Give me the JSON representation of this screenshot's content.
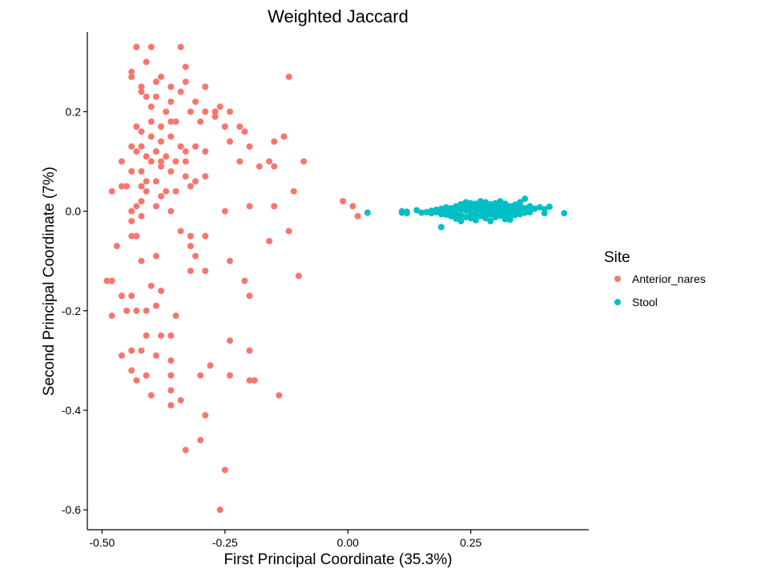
{
  "chart_data": {
    "type": "scatter",
    "title": "Weighted Jaccard",
    "xlabel": "First Principal Coordinate (35.3%)",
    "ylabel": "Second Principal Coordinate (7%)",
    "xlim": [
      -0.53,
      0.49
    ],
    "ylim": [
      -0.64,
      0.36
    ],
    "xticks": [
      -0.5,
      -0.25,
      0.0,
      0.25
    ],
    "xtick_labels": [
      "-0.50",
      "-0.25",
      "0.00",
      "0.25"
    ],
    "yticks": [
      -0.6,
      -0.4,
      -0.2,
      0.0,
      0.2
    ],
    "ytick_labels": [
      "-0.6",
      "-0.4",
      "-0.2",
      "0.0",
      "0.2"
    ],
    "grid": false,
    "legend": {
      "title": "Site",
      "placement": "right"
    },
    "series": [
      {
        "name": "Anterior_nares",
        "color": "#F8766D",
        "points": [
          [
            -0.43,
            0.33
          ],
          [
            -0.4,
            0.33
          ],
          [
            -0.34,
            0.33
          ],
          [
            -0.44,
            0.28
          ],
          [
            -0.44,
            0.27
          ],
          [
            -0.41,
            0.3
          ],
          [
            -0.38,
            0.27
          ],
          [
            -0.39,
            0.26
          ],
          [
            -0.36,
            0.25
          ],
          [
            -0.33,
            0.29
          ],
          [
            -0.33,
            0.26
          ],
          [
            -0.29,
            0.25
          ],
          [
            -0.12,
            0.27
          ],
          [
            -0.42,
            0.25
          ],
          [
            -0.42,
            0.24
          ],
          [
            -0.41,
            0.23
          ],
          [
            -0.39,
            0.23
          ],
          [
            -0.34,
            0.24
          ],
          [
            -0.36,
            0.22
          ],
          [
            -0.4,
            0.21
          ],
          [
            -0.37,
            0.2
          ],
          [
            -0.31,
            0.22
          ],
          [
            -0.26,
            0.21
          ],
          [
            -0.27,
            0.2
          ],
          [
            -0.29,
            0.2
          ],
          [
            -0.27,
            0.19
          ],
          [
            -0.24,
            0.2
          ],
          [
            -0.32,
            0.2
          ],
          [
            -0.43,
            0.17
          ],
          [
            -0.42,
            0.16
          ],
          [
            -0.4,
            0.18
          ],
          [
            -0.38,
            0.17
          ],
          [
            -0.36,
            0.18
          ],
          [
            -0.35,
            0.18
          ],
          [
            -0.3,
            0.18
          ],
          [
            -0.25,
            0.17
          ],
          [
            -0.22,
            0.17
          ],
          [
            -0.21,
            0.16
          ],
          [
            -0.15,
            0.14
          ],
          [
            -0.13,
            0.15
          ],
          [
            -0.24,
            0.14
          ],
          [
            -0.2,
            0.13
          ],
          [
            -0.44,
            0.13
          ],
          [
            -0.42,
            0.13
          ],
          [
            -0.4,
            0.15
          ],
          [
            -0.38,
            0.14
          ],
          [
            -0.36,
            0.15
          ],
          [
            -0.34,
            0.13
          ],
          [
            -0.33,
            0.12
          ],
          [
            -0.31,
            0.13
          ],
          [
            -0.29,
            0.12
          ],
          [
            -0.39,
            0.12
          ],
          [
            -0.43,
            0.12
          ],
          [
            -0.41,
            0.11
          ],
          [
            -0.4,
            0.1
          ],
          [
            -0.38,
            0.1
          ],
          [
            -0.37,
            0.11
          ],
          [
            -0.35,
            0.1
          ],
          [
            -0.33,
            0.1
          ],
          [
            -0.22,
            0.1
          ],
          [
            -0.18,
            0.09
          ],
          [
            -0.16,
            0.1
          ],
          [
            -0.15,
            0.09
          ],
          [
            -0.09,
            0.1
          ],
          [
            -0.46,
            0.1
          ],
          [
            -0.44,
            0.08
          ],
          [
            -0.42,
            0.08
          ],
          [
            -0.38,
            0.09
          ],
          [
            -0.36,
            0.08
          ],
          [
            -0.33,
            0.07
          ],
          [
            -0.31,
            0.06
          ],
          [
            -0.29,
            0.07
          ],
          [
            -0.41,
            0.06
          ],
          [
            -0.39,
            0.06
          ],
          [
            -0.45,
            0.05
          ],
          [
            -0.46,
            0.05
          ],
          [
            -0.48,
            0.04
          ],
          [
            -0.42,
            0.05
          ],
          [
            -0.41,
            0.04
          ],
          [
            -0.38,
            0.03
          ],
          [
            -0.37,
            0.04
          ],
          [
            -0.35,
            0.04
          ],
          [
            -0.32,
            0.05
          ],
          [
            -0.11,
            0.04
          ],
          [
            -0.44,
            0.0
          ],
          [
            -0.43,
            0.01
          ],
          [
            -0.42,
            0.02
          ],
          [
            -0.39,
            0.01
          ],
          [
            -0.36,
            0.0
          ],
          [
            -0.25,
            0.0
          ],
          [
            -0.2,
            0.01
          ],
          [
            -0.15,
            0.01
          ],
          [
            -0.42,
            -0.01
          ],
          [
            -0.44,
            -0.02
          ],
          [
            -0.34,
            -0.04
          ],
          [
            -0.32,
            -0.05
          ],
          [
            -0.29,
            -0.05
          ],
          [
            -0.32,
            -0.07
          ],
          [
            -0.31,
            -0.09
          ],
          [
            -0.24,
            -0.1
          ],
          [
            -0.16,
            -0.06
          ],
          [
            -0.12,
            -0.04
          ],
          [
            -0.43,
            -0.05
          ],
          [
            -0.44,
            -0.05
          ],
          [
            -0.47,
            -0.07
          ],
          [
            -0.39,
            -0.09
          ],
          [
            -0.42,
            -0.1
          ],
          [
            -0.4,
            -0.15
          ],
          [
            -0.38,
            -0.16
          ],
          [
            -0.32,
            -0.12
          ],
          [
            -0.29,
            -0.12
          ],
          [
            -0.21,
            -0.14
          ],
          [
            -0.2,
            -0.17
          ],
          [
            -0.1,
            -0.13
          ],
          [
            -0.49,
            -0.14
          ],
          [
            -0.48,
            -0.14
          ],
          [
            -0.46,
            -0.17
          ],
          [
            -0.44,
            -0.17
          ],
          [
            -0.39,
            -0.19
          ],
          [
            -0.41,
            -0.2
          ],
          [
            -0.45,
            -0.2
          ],
          [
            -0.43,
            -0.2
          ],
          [
            -0.48,
            -0.21
          ],
          [
            -0.38,
            -0.25
          ],
          [
            -0.41,
            -0.25
          ],
          [
            -0.36,
            -0.25
          ],
          [
            -0.35,
            -0.21
          ],
          [
            -0.46,
            -0.29
          ],
          [
            -0.44,
            -0.28
          ],
          [
            -0.42,
            -0.28
          ],
          [
            -0.39,
            -0.29
          ],
          [
            -0.36,
            -0.3
          ],
          [
            -0.36,
            -0.33
          ],
          [
            -0.41,
            -0.33
          ],
          [
            -0.43,
            -0.34
          ],
          [
            -0.44,
            -0.32
          ],
          [
            -0.3,
            -0.33
          ],
          [
            -0.24,
            -0.26
          ],
          [
            -0.2,
            -0.28
          ],
          [
            -0.28,
            -0.31
          ],
          [
            -0.24,
            -0.33
          ],
          [
            -0.2,
            -0.34
          ],
          [
            -0.19,
            -0.34
          ],
          [
            -0.4,
            -0.37
          ],
          [
            -0.36,
            -0.36
          ],
          [
            -0.36,
            -0.39
          ],
          [
            -0.34,
            -0.38
          ],
          [
            -0.29,
            -0.41
          ],
          [
            -0.14,
            -0.37
          ],
          [
            -0.3,
            -0.46
          ],
          [
            -0.33,
            -0.48
          ],
          [
            -0.25,
            -0.52
          ],
          [
            -0.26,
            -0.6
          ],
          [
            -0.01,
            0.02
          ],
          [
            0.01,
            0.01
          ],
          [
            0.02,
            -0.01
          ]
        ]
      },
      {
        "name": "Stool",
        "color": "#00BFC4",
        "points": [
          [
            0.04,
            -0.003
          ],
          [
            0.11,
            0.0
          ],
          [
            0.11,
            -0.003
          ],
          [
            0.12,
            -0.004
          ],
          [
            0.12,
            -0.001
          ],
          [
            0.14,
            0.002
          ],
          [
            0.15,
            -0.003
          ],
          [
            0.16,
            -0.002
          ],
          [
            0.17,
            0.001
          ],
          [
            0.17,
            -0.004
          ],
          [
            0.18,
            0.003
          ],
          [
            0.18,
            -0.002
          ],
          [
            0.19,
            0.005
          ],
          [
            0.19,
            -0.006
          ],
          [
            0.2,
            0.008
          ],
          [
            0.2,
            -0.001
          ],
          [
            0.2,
            -0.007
          ],
          [
            0.21,
            0.006
          ],
          [
            0.21,
            0.0
          ],
          [
            0.21,
            -0.01
          ],
          [
            0.22,
            0.01
          ],
          [
            0.22,
            0.002
          ],
          [
            0.22,
            -0.005
          ],
          [
            0.23,
            0.014
          ],
          [
            0.23,
            0.004
          ],
          [
            0.23,
            -0.008
          ],
          [
            0.24,
            0.012
          ],
          [
            0.24,
            0.001
          ],
          [
            0.24,
            -0.012
          ],
          [
            0.25,
            0.016
          ],
          [
            0.25,
            0.006
          ],
          [
            0.25,
            -0.004
          ],
          [
            0.25,
            -0.014
          ],
          [
            0.26,
            0.015
          ],
          [
            0.26,
            0.005
          ],
          [
            0.26,
            -0.006
          ],
          [
            0.27,
            0.012
          ],
          [
            0.27,
            0.002
          ],
          [
            0.27,
            -0.01
          ],
          [
            0.28,
            0.018
          ],
          [
            0.28,
            0.008
          ],
          [
            0.28,
            -0.003
          ],
          [
            0.28,
            -0.014
          ],
          [
            0.29,
            0.014
          ],
          [
            0.29,
            0.004
          ],
          [
            0.29,
            -0.007
          ],
          [
            0.3,
            0.016
          ],
          [
            0.3,
            0.006
          ],
          [
            0.3,
            -0.004
          ],
          [
            0.3,
            -0.012
          ],
          [
            0.31,
            0.012
          ],
          [
            0.31,
            0.001
          ],
          [
            0.31,
            -0.009
          ],
          [
            0.32,
            0.015
          ],
          [
            0.32,
            0.005
          ],
          [
            0.32,
            -0.006
          ],
          [
            0.33,
            0.01
          ],
          [
            0.33,
            -0.001
          ],
          [
            0.33,
            -0.011
          ],
          [
            0.34,
            0.013
          ],
          [
            0.34,
            0.003
          ],
          [
            0.34,
            -0.008
          ],
          [
            0.35,
            0.011
          ],
          [
            0.35,
            0.001
          ],
          [
            0.35,
            -0.006
          ],
          [
            0.36,
            0.025
          ],
          [
            0.36,
            0.006
          ],
          [
            0.36,
            -0.003
          ],
          [
            0.37,
            0.01
          ],
          [
            0.37,
            -0.002
          ],
          [
            0.38,
            0.005
          ],
          [
            0.39,
            0.008
          ],
          [
            0.4,
            0.004
          ],
          [
            0.4,
            -0.004
          ],
          [
            0.41,
            0.009
          ],
          [
            0.44,
            -0.004
          ],
          [
            0.19,
            -0.032
          ],
          [
            0.23,
            -0.02
          ],
          [
            0.26,
            -0.018
          ],
          [
            0.29,
            -0.02
          ],
          [
            0.33,
            -0.017
          ],
          [
            0.24,
            0.018
          ],
          [
            0.31,
            0.02
          ],
          [
            0.27,
            0.02
          ],
          [
            0.35,
            0.018
          ],
          [
            0.22,
            -0.015
          ],
          [
            0.26,
            0.01
          ],
          [
            0.3,
            0.01
          ],
          [
            0.32,
            -0.016
          ],
          [
            0.28,
            -0.008
          ]
        ]
      }
    ]
  }
}
